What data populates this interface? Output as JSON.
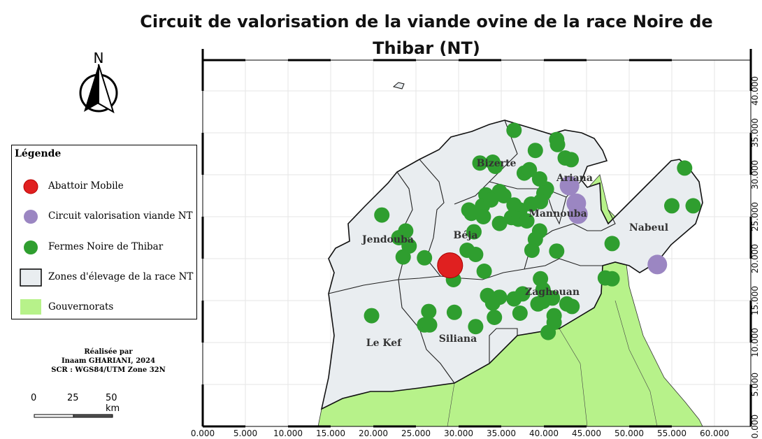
{
  "title": "Circuit de valorisation de la viande ovine de la race Noire de Thibar (NT)",
  "north_label": "N",
  "legend": {
    "title": "Légende",
    "items": [
      {
        "label": "Abattoir Mobile",
        "color": "#e02020"
      },
      {
        "label": "Circuit valorisation viande NT",
        "color": "#9b86c2"
      },
      {
        "label": "Fermes Noire de Thibar",
        "color": "#2f9e2f"
      },
      {
        "label": "Zones d'élevage de la race NT",
        "color": "#e9edf0"
      },
      {
        "label": "Gouvernorats",
        "color": "#b7f28a"
      }
    ]
  },
  "credits": {
    "line1": "Réalisée par",
    "line2": "Inaam GHARIANI, 2024",
    "line3": "SCR : WGS84/UTM Zone 32N"
  },
  "scale": {
    "labels": [
      "0",
      "25",
      "50 km"
    ]
  },
  "regions": [
    "Bizerte",
    "Ariana",
    "Mannouba",
    "Nabeul",
    "Jendouba",
    "Béja",
    "Zaghouan",
    "Le Kef",
    "Siliana"
  ],
  "x_ticks": [
    "0.000",
    "5.000",
    "10.000",
    "15.000",
    "20.000",
    "25.000",
    "30.000",
    "35.000",
    "40.000",
    "45.000",
    "50.000",
    "55.000",
    "60.000"
  ],
  "y_ticks": [
    "0.000",
    "5.000",
    "10.000",
    "15.000",
    "20.000",
    "25.000",
    "30.000",
    "35.000",
    "40.000"
  ],
  "abattoirs": [
    [
      29.0,
      19.2
    ]
  ],
  "circuit_points": [
    [
      43.0,
      28.7
    ],
    [
      43.8,
      26.6
    ],
    [
      44.0,
      25.3
    ],
    [
      53.3,
      19.3
    ]
  ],
  "farms": [
    [
      36.5,
      35.3
    ],
    [
      41.5,
      34.2
    ],
    [
      41.6,
      33.6
    ],
    [
      39.0,
      32.9
    ],
    [
      42.5,
      32.0
    ],
    [
      43.2,
      31.8
    ],
    [
      32.5,
      31.4
    ],
    [
      34.0,
      31.5
    ],
    [
      34.3,
      31.0
    ],
    [
      37.7,
      30.2
    ],
    [
      38.3,
      30.6
    ],
    [
      56.5,
      30.8
    ],
    [
      39.5,
      29.5
    ],
    [
      40.3,
      28.3
    ],
    [
      40.0,
      27.8
    ],
    [
      34.8,
      28.0
    ],
    [
      35.3,
      27.5
    ],
    [
      33.2,
      27.6
    ],
    [
      32.8,
      26.3
    ],
    [
      31.2,
      25.8
    ],
    [
      31.5,
      25.4
    ],
    [
      33.8,
      27.0
    ],
    [
      36.5,
      26.4
    ],
    [
      37.2,
      25.8
    ],
    [
      38.5,
      26.5
    ],
    [
      39.6,
      26.8
    ],
    [
      36.2,
      24.9
    ],
    [
      37.0,
      24.7
    ],
    [
      38.0,
      24.5
    ],
    [
      34.8,
      24.2
    ],
    [
      32.9,
      25.0
    ],
    [
      55.0,
      26.3
    ],
    [
      57.5,
      26.3
    ],
    [
      21.0,
      25.2
    ],
    [
      23.8,
      23.3
    ],
    [
      23.0,
      22.5
    ],
    [
      24.2,
      21.5
    ],
    [
      23.5,
      20.2
    ],
    [
      26.0,
      20.1
    ],
    [
      31.8,
      23.2
    ],
    [
      31.0,
      21.0
    ],
    [
      32.0,
      20.5
    ],
    [
      39.5,
      23.3
    ],
    [
      39.0,
      22.3
    ],
    [
      38.6,
      21.0
    ],
    [
      41.5,
      20.9
    ],
    [
      48.0,
      21.8
    ],
    [
      33.0,
      18.5
    ],
    [
      29.4,
      17.5
    ],
    [
      39.6,
      17.6
    ],
    [
      39.9,
      16.3
    ],
    [
      47.2,
      17.7
    ],
    [
      48.0,
      17.6
    ],
    [
      33.4,
      15.6
    ],
    [
      34.8,
      15.4
    ],
    [
      36.5,
      15.2
    ],
    [
      37.5,
      15.8
    ],
    [
      41.0,
      15.3
    ],
    [
      34.0,
      14.7
    ],
    [
      39.3,
      14.6
    ],
    [
      39.9,
      14.9
    ],
    [
      42.7,
      14.6
    ],
    [
      43.3,
      14.3
    ],
    [
      19.8,
      13.2
    ],
    [
      26.5,
      13.7
    ],
    [
      29.5,
      13.6
    ],
    [
      34.2,
      13.0
    ],
    [
      37.2,
      13.5
    ],
    [
      41.2,
      13.2
    ],
    [
      26.0,
      12.1
    ],
    [
      26.6,
      12.1
    ],
    [
      32.0,
      11.9
    ],
    [
      41.2,
      12.4
    ],
    [
      40.5,
      11.2
    ]
  ]
}
